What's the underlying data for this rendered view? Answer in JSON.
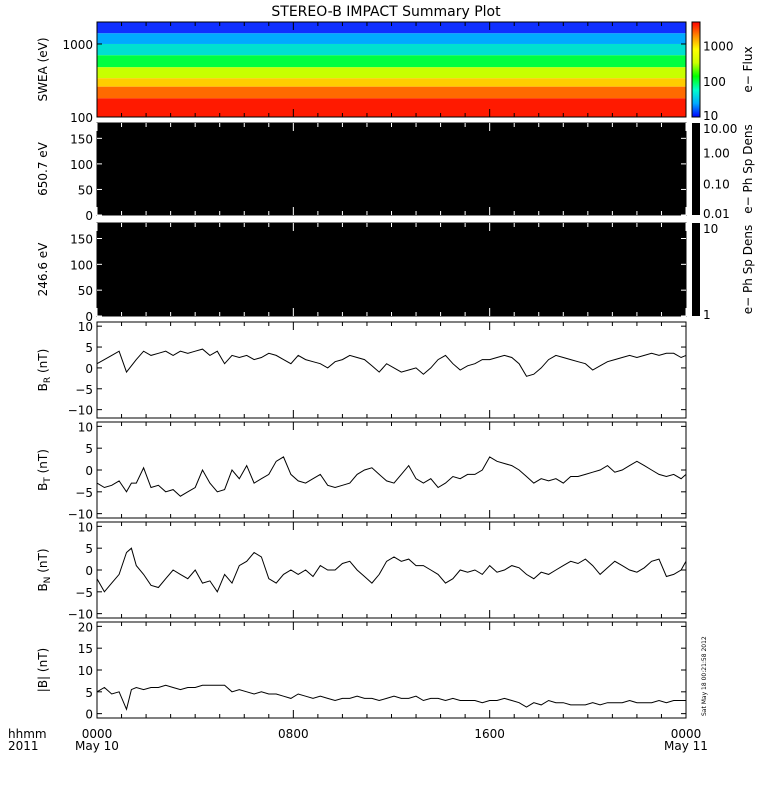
{
  "title": "STEREO-B IMPACT Summary Plot",
  "timestamp": "Sat May 18 00:21:58 2012",
  "xaxis": {
    "ticks": [
      {
        "hours": 0,
        "label": "0000",
        "sub": "May 10"
      },
      {
        "hours": 8,
        "label": "0800",
        "sub": ""
      },
      {
        "hours": 16,
        "label": "1600",
        "sub": ""
      },
      {
        "hours": 24,
        "label": "0000",
        "sub": "May 11"
      }
    ],
    "corner_label": "hhmm",
    "corner_year": "2011",
    "range_hours": [
      0,
      24
    ]
  },
  "chart_data": [
    {
      "type": "heatmap",
      "ylabel": "SWEA (eV)",
      "yscale": "log",
      "ylim": [
        100,
        2000
      ],
      "yticks": [
        {
          "v": 100,
          "label": "100"
        },
        {
          "v": 1000,
          "label": "1000"
        }
      ],
      "colorbar": {
        "label": "e− Flux",
        "scale": "log",
        "range": [
          10,
          5000
        ],
        "ticks": [
          {
            "v": 10,
            "label": "10"
          },
          {
            "v": 100,
            "label": "100"
          },
          {
            "v": 1000,
            "label": "1000"
          }
        ],
        "colormap": [
          "#0000ff",
          "#00aaff",
          "#00ffcc",
          "#00ff00",
          "#ccff00",
          "#ffff00",
          "#ff8800",
          "#ff0000"
        ]
      },
      "description_values": {
        "high_flux_below_eV": 250,
        "low_flux_above_eV": 1500
      }
    },
    {
      "type": "heatmap",
      "ylabel": "650.7 eV",
      "ylim": [
        0,
        180
      ],
      "yticks": [
        {
          "v": 0,
          "label": "0"
        },
        {
          "v": 50,
          "label": "50"
        },
        {
          "v": 100,
          "label": "100"
        },
        {
          "v": 150,
          "label": "150"
        }
      ],
      "colorbar": {
        "label": "e− Ph Sp Dens",
        "scale": "log",
        "range": [
          0.01,
          10
        ],
        "ticks": [
          {
            "v": 0.01,
            "label": "0.01"
          },
          {
            "v": 0.1,
            "label": "0.10"
          },
          {
            "v": 1,
            "label": "1.00"
          },
          {
            "v": 10,
            "label": "10.00"
          }
        ],
        "fill": "#000000"
      }
    },
    {
      "type": "heatmap",
      "ylabel": "246.6 eV",
      "ylim": [
        0,
        180
      ],
      "yticks": [
        {
          "v": 0,
          "label": "0"
        },
        {
          "v": 50,
          "label": "50"
        },
        {
          "v": 100,
          "label": "100"
        },
        {
          "v": 150,
          "label": "150"
        }
      ],
      "colorbar": {
        "label": "e− Ph Sp Dens",
        "scale": "log",
        "range": [
          1,
          10
        ],
        "ticks": [
          {
            "v": 1,
            "label": "1"
          },
          {
            "v": 10,
            "label": "10"
          }
        ],
        "fill": "#000000"
      }
    },
    {
      "type": "line",
      "ylabel": "B",
      "ysub": "R",
      "yunit": "(nT)",
      "ylim": [
        -12,
        11
      ],
      "yticks": [
        {
          "v": -10,
          "label": "−10"
        },
        {
          "v": -5,
          "label": "−5"
        },
        {
          "v": 0,
          "label": "0"
        },
        {
          "v": 5,
          "label": "5"
        },
        {
          "v": 10,
          "label": "10"
        }
      ],
      "x": [
        0,
        0.3,
        0.6,
        0.9,
        1.2,
        1.4,
        1.6,
        1.9,
        2.2,
        2.5,
        2.8,
        3.1,
        3.4,
        3.7,
        4,
        4.3,
        4.6,
        4.9,
        5.2,
        5.5,
        5.8,
        6.1,
        6.4,
        6.7,
        7,
        7.3,
        7.6,
        7.9,
        8.2,
        8.5,
        8.8,
        9.1,
        9.4,
        9.7,
        10,
        10.3,
        10.6,
        10.9,
        11.2,
        11.5,
        11.8,
        12.1,
        12.4,
        12.7,
        13,
        13.3,
        13.6,
        13.9,
        14.2,
        14.5,
        14.8,
        15.1,
        15.4,
        15.7,
        16,
        16.3,
        16.6,
        16.9,
        17.2,
        17.5,
        17.8,
        18.1,
        18.4,
        18.7,
        19,
        19.3,
        19.6,
        19.9,
        20.2,
        20.5,
        20.8,
        21.1,
        21.4,
        21.7,
        22,
        22.3,
        22.6,
        22.9,
        23.2,
        23.5,
        23.8,
        24
      ],
      "y": [
        1,
        2,
        3,
        4,
        -1,
        0.5,
        2,
        4,
        3,
        3.5,
        4,
        3,
        4,
        3.5,
        4,
        4.5,
        3,
        4,
        1,
        3,
        2.5,
        3,
        2,
        2.5,
        3.5,
        3,
        2,
        1,
        3,
        2,
        1.5,
        1,
        0,
        1.5,
        2,
        3,
        2.5,
        2,
        0.5,
        -1,
        1,
        0,
        -1,
        -0.5,
        0,
        -1.5,
        0,
        2,
        3,
        1,
        -0.5,
        0.5,
        1,
        2,
        2,
        2.5,
        3,
        2.5,
        1,
        -2,
        -1.5,
        0,
        2,
        3,
        2.5,
        2,
        1.5,
        1,
        -0.5,
        0.5,
        1.5,
        2,
        2.5,
        3,
        2.5,
        3,
        3.5,
        3,
        3.5,
        3.5,
        2.5,
        3
      ]
    },
    {
      "type": "line",
      "ylabel": "B",
      "ysub": "T",
      "yunit": "(nT)",
      "ylim": [
        -11,
        11
      ],
      "yticks": [
        {
          "v": -10,
          "label": "−10"
        },
        {
          "v": -5,
          "label": "−5"
        },
        {
          "v": 0,
          "label": "0"
        },
        {
          "v": 5,
          "label": "5"
        },
        {
          "v": 10,
          "label": "10"
        }
      ],
      "x": [
        0,
        0.3,
        0.6,
        0.9,
        1.2,
        1.4,
        1.6,
        1.9,
        2.2,
        2.5,
        2.8,
        3.1,
        3.4,
        3.7,
        4,
        4.3,
        4.6,
        4.9,
        5.2,
        5.5,
        5.8,
        6.1,
        6.4,
        6.7,
        7,
        7.3,
        7.6,
        7.9,
        8.2,
        8.5,
        8.8,
        9.1,
        9.4,
        9.7,
        10,
        10.3,
        10.6,
        10.9,
        11.2,
        11.5,
        11.8,
        12.1,
        12.4,
        12.7,
        13,
        13.3,
        13.6,
        13.9,
        14.2,
        14.5,
        14.8,
        15.1,
        15.4,
        15.7,
        16,
        16.3,
        16.6,
        16.9,
        17.2,
        17.5,
        17.8,
        18.1,
        18.4,
        18.7,
        19,
        19.3,
        19.6,
        19.9,
        20.2,
        20.5,
        20.8,
        21.1,
        21.4,
        21.7,
        22,
        22.3,
        22.6,
        22.9,
        23.2,
        23.5,
        23.8,
        24
      ],
      "y": [
        -3,
        -4,
        -3.5,
        -2.5,
        -5,
        -3,
        -3,
        0.5,
        -4,
        -3.5,
        -5,
        -4.5,
        -6,
        -5,
        -4,
        0,
        -3,
        -5,
        -4.5,
        0,
        -2,
        1,
        -3,
        -2,
        -1,
        2,
        3,
        -1,
        -2.5,
        -3,
        -2,
        -1,
        -3.5,
        -4,
        -3.5,
        -3,
        -1,
        0,
        0.5,
        -1,
        -2.5,
        -3,
        -1,
        1,
        -2,
        -3,
        -2,
        -4,
        -3,
        -1.5,
        -2,
        -1,
        -1,
        0,
        3,
        2,
        1.5,
        1,
        0,
        -1.5,
        -3,
        -2,
        -2.5,
        -2,
        -3,
        -1.5,
        -1.5,
        -1,
        -0.5,
        0,
        1,
        -0.5,
        0,
        1,
        2,
        1,
        0,
        -1,
        -1.5,
        -1,
        -2,
        -1
      ]
    },
    {
      "type": "line",
      "ylabel": "B",
      "ysub": "N",
      "yunit": "(nT)",
      "ylim": [
        -11,
        11
      ],
      "yticks": [
        {
          "v": -10,
          "label": "−10"
        },
        {
          "v": -5,
          "label": "−5"
        },
        {
          "v": 0,
          "label": "0"
        },
        {
          "v": 5,
          "label": "5"
        },
        {
          "v": 10,
          "label": "10"
        }
      ],
      "x": [
        0,
        0.3,
        0.6,
        0.9,
        1.2,
        1.4,
        1.6,
        1.9,
        2.2,
        2.5,
        2.8,
        3.1,
        3.4,
        3.7,
        4,
        4.3,
        4.6,
        4.9,
        5.2,
        5.5,
        5.8,
        6.1,
        6.4,
        6.7,
        7,
        7.3,
        7.6,
        7.9,
        8.2,
        8.5,
        8.8,
        9.1,
        9.4,
        9.7,
        10,
        10.3,
        10.6,
        10.9,
        11.2,
        11.5,
        11.8,
        12.1,
        12.4,
        12.7,
        13,
        13.3,
        13.6,
        13.9,
        14.2,
        14.5,
        14.8,
        15.1,
        15.4,
        15.7,
        16,
        16.3,
        16.6,
        16.9,
        17.2,
        17.5,
        17.8,
        18.1,
        18.4,
        18.7,
        19,
        19.3,
        19.6,
        19.9,
        20.2,
        20.5,
        20.8,
        21.1,
        21.4,
        21.7,
        22,
        22.3,
        22.6,
        22.9,
        23.2,
        23.5,
        23.8,
        24
      ],
      "y": [
        -2,
        -5,
        -3,
        -1,
        4,
        5,
        1,
        -1,
        -3.5,
        -4,
        -2,
        0,
        -1,
        -2,
        0,
        -3,
        -2.5,
        -5,
        -1,
        -3,
        1,
        2,
        4,
        3,
        -2,
        -3,
        -1,
        0,
        -1,
        0,
        -1.5,
        1,
        0,
        0,
        1.5,
        2,
        0,
        -1.5,
        -3,
        -1,
        2,
        3,
        2,
        2.5,
        1,
        1,
        0,
        -1,
        -3,
        -2,
        0,
        -0.5,
        0,
        -1,
        1,
        -0.5,
        0,
        1,
        0.5,
        -1,
        -2,
        -0.5,
        -1,
        0,
        1,
        2,
        1.5,
        2.5,
        1,
        -1,
        0.5,
        2,
        1,
        0,
        -0.5,
        0.5,
        2,
        2.5,
        -1.5,
        -1,
        0,
        2
      ]
    },
    {
      "type": "line",
      "ylabel": "|B|",
      "yunit": "(nT)",
      "ylim": [
        -1,
        21
      ],
      "yticks": [
        {
          "v": 0,
          "label": "0"
        },
        {
          "v": 5,
          "label": "5"
        },
        {
          "v": 10,
          "label": "10"
        },
        {
          "v": 15,
          "label": "15"
        },
        {
          "v": 20,
          "label": "20"
        }
      ],
      "x": [
        0,
        0.3,
        0.6,
        0.9,
        1.2,
        1.4,
        1.6,
        1.9,
        2.2,
        2.5,
        2.8,
        3.1,
        3.4,
        3.7,
        4,
        4.3,
        4.6,
        4.9,
        5.2,
        5.5,
        5.8,
        6.1,
        6.4,
        6.7,
        7,
        7.3,
        7.6,
        7.9,
        8.2,
        8.5,
        8.8,
        9.1,
        9.4,
        9.7,
        10,
        10.3,
        10.6,
        10.9,
        11.2,
        11.5,
        11.8,
        12.1,
        12.4,
        12.7,
        13,
        13.3,
        13.6,
        13.9,
        14.2,
        14.5,
        14.8,
        15.1,
        15.4,
        15.7,
        16,
        16.3,
        16.6,
        16.9,
        17.2,
        17.5,
        17.8,
        18.1,
        18.4,
        18.7,
        19,
        19.3,
        19.6,
        19.9,
        20.2,
        20.5,
        20.8,
        21.1,
        21.4,
        21.7,
        22,
        22.3,
        22.6,
        22.9,
        23.2,
        23.5,
        23.8,
        24
      ],
      "y": [
        5,
        6,
        4.5,
        5,
        1,
        5.5,
        6,
        5.5,
        6,
        6,
        6.5,
        6,
        5.5,
        6,
        6,
        6.5,
        6.5,
        6.5,
        6.5,
        5,
        5.5,
        5,
        4.5,
        5,
        4.5,
        4.5,
        4,
        3.5,
        4.5,
        4,
        3.5,
        4,
        3.5,
        3,
        3.5,
        3.5,
        4,
        3.5,
        3.5,
        3,
        3.5,
        4,
        3.5,
        3.5,
        4,
        3,
        3.5,
        3.5,
        3,
        3.5,
        3,
        3,
        3,
        2.5,
        3,
        3,
        3.5,
        3,
        2.5,
        1.5,
        2.5,
        2,
        3,
        2.5,
        2.5,
        2,
        2,
        2,
        2.5,
        2,
        2.5,
        2.5,
        2.5,
        3,
        2.5,
        2.5,
        2.5,
        3,
        2.5,
        3,
        3,
        3
      ]
    }
  ]
}
